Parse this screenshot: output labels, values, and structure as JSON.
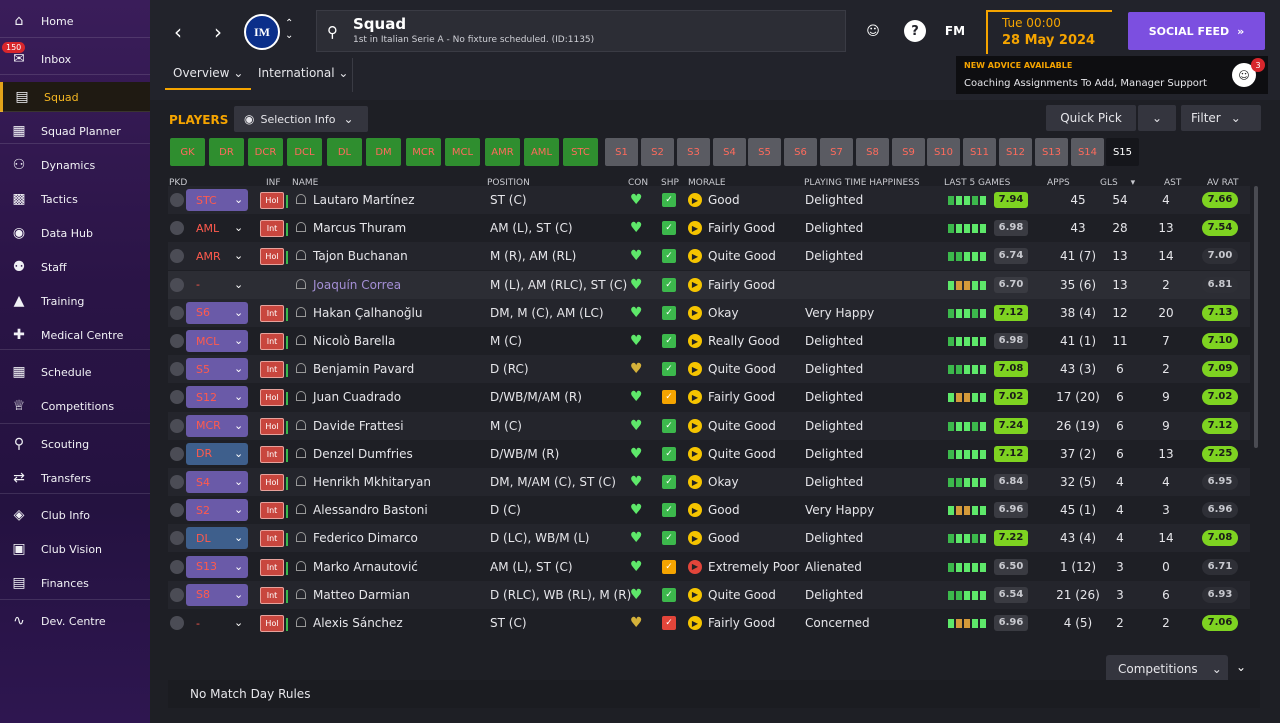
{
  "sidebar": {
    "inbox_badge": "150",
    "items": [
      {
        "label": "Home",
        "icon": "home-icon",
        "glyph": "⌂"
      },
      {
        "label": "Inbox",
        "icon": "inbox-icon",
        "glyph": "✉"
      },
      {
        "label": "Squad",
        "icon": "squad-icon",
        "glyph": "▤"
      },
      {
        "label": "Squad Planner",
        "icon": "planner-icon",
        "glyph": "▦"
      },
      {
        "label": "Dynamics",
        "icon": "dynamics-icon",
        "glyph": "⚇"
      },
      {
        "label": "Tactics",
        "icon": "tactics-icon",
        "glyph": "▩"
      },
      {
        "label": "Data Hub",
        "icon": "data-hub-icon",
        "glyph": "◉"
      },
      {
        "label": "Staff",
        "icon": "staff-icon",
        "glyph": "⚉"
      },
      {
        "label": "Training",
        "icon": "training-icon",
        "glyph": "▲"
      },
      {
        "label": "Medical Centre",
        "icon": "medical-icon",
        "glyph": "✚"
      },
      {
        "label": "Schedule",
        "icon": "schedule-icon",
        "glyph": "▦"
      },
      {
        "label": "Competitions",
        "icon": "trophy-icon",
        "glyph": "♕"
      },
      {
        "label": "Scouting",
        "icon": "scouting-icon",
        "glyph": "⚲"
      },
      {
        "label": "Transfers",
        "icon": "transfers-icon",
        "glyph": "⇄"
      },
      {
        "label": "Club Info",
        "icon": "club-info-icon",
        "glyph": "◈"
      },
      {
        "label": "Club Vision",
        "icon": "club-vision-icon",
        "glyph": "▣"
      },
      {
        "label": "Finances",
        "icon": "finances-icon",
        "glyph": "▤"
      },
      {
        "label": "Dev. Centre",
        "icon": "dev-centre-icon",
        "glyph": "∿"
      }
    ]
  },
  "header": {
    "club_badge": "IM",
    "title": "Squad",
    "subtitle": "1st in Italian Serie A - No fixture scheduled. (ID:1135)",
    "fm_label": "FM",
    "date_time": "Tue 00:00",
    "date_day": "28 May 2024",
    "social_feed": "SOCIAL FEED",
    "advice_title": "NEW ADVICE AVAILABLE",
    "advice_text": "Coaching Assignments To Add, Manager Support",
    "advice_count": "3",
    "tabs": [
      "Overview",
      "International"
    ]
  },
  "toolbar": {
    "players_label": "PLAYERS",
    "selection_info": "Selection Info",
    "quick_pick": "Quick Pick",
    "filter": "Filter"
  },
  "position_filters": [
    "GK",
    "DR",
    "DCR",
    "DCL",
    "DL",
    "DM",
    "MCR",
    "MCL",
    "AMR",
    "AML",
    "STC",
    "S1",
    "S2",
    "S3",
    "S4",
    "S5",
    "S6",
    "S7",
    "S8",
    "S9",
    "S10",
    "S11",
    "S12",
    "S13",
    "S14",
    "S15"
  ],
  "columns": {
    "pkd": "PKD",
    "inf": "INF",
    "name": "NAME",
    "position": "POSITION",
    "con": "CON",
    "shp": "SHP",
    "morale": "MORALE",
    "pth": "PLAYING TIME HAPPINESS",
    "last5": "LAST 5 GAMES",
    "apps": "APPS",
    "gls": "GLS",
    "ast": "AST",
    "avrat": "AV RAT"
  },
  "players": [
    {
      "pkd": "STC",
      "inf": "Hol",
      "name": "Lautaro Martínez",
      "position": "ST (C)",
      "morale": "Good",
      "pth": "Delighted",
      "l5": "7.94",
      "apps": "45",
      "gls": "54",
      "ast": "4",
      "avr": "7.66"
    },
    {
      "pkd": "AML",
      "inf": "Int",
      "name": "Marcus Thuram",
      "position": "AM (L), ST (C)",
      "morale": "Fairly Good",
      "pth": "Delighted",
      "l5": "6.98",
      "apps": "43",
      "gls": "28",
      "ast": "13",
      "avr": "7.54"
    },
    {
      "pkd": "AMR",
      "inf": "Hol",
      "name": "Tajon Buchanan",
      "position": "M (R), AM (RL)",
      "morale": "Quite Good",
      "pth": "Delighted",
      "l5": "6.74",
      "apps": "41 (7)",
      "gls": "13",
      "ast": "14",
      "avr": "7.00"
    },
    {
      "pkd": "-",
      "inf": "",
      "name": "Joaquín Correa",
      "position": "M (L), AM (RLC), ST (C)",
      "morale": "Fairly Good",
      "pth": "",
      "l5": "6.70",
      "apps": "35 (6)",
      "gls": "13",
      "ast": "2",
      "avr": "6.81"
    },
    {
      "pkd": "S6",
      "inf": "Int",
      "name": "Hakan Çalhanoğlu",
      "position": "DM, M (C), AM (LC)",
      "morale": "Okay",
      "pth": "Very Happy",
      "l5": "7.12",
      "apps": "38 (4)",
      "gls": "12",
      "ast": "20",
      "avr": "7.13"
    },
    {
      "pkd": "MCL",
      "inf": "Int",
      "name": "Nicolò Barella",
      "position": "M (C)",
      "morale": "Really Good",
      "pth": "Delighted",
      "l5": "6.98",
      "apps": "41 (1)",
      "gls": "11",
      "ast": "7",
      "avr": "7.10"
    },
    {
      "pkd": "S5",
      "inf": "Int",
      "name": "Benjamin Pavard",
      "position": "D (RC)",
      "morale": "Quite Good",
      "pth": "Delighted",
      "l5": "7.08",
      "apps": "43 (3)",
      "gls": "6",
      "ast": "2",
      "avr": "7.09"
    },
    {
      "pkd": "S12",
      "inf": "Hol",
      "name": "Juan Cuadrado",
      "position": "D/WB/M/AM (R)",
      "morale": "Fairly Good",
      "pth": "Delighted",
      "l5": "7.02",
      "apps": "17 (20)",
      "gls": "6",
      "ast": "9",
      "avr": "7.02"
    },
    {
      "pkd": "MCR",
      "inf": "Hol",
      "name": "Davide Frattesi",
      "position": "M (C)",
      "morale": "Quite Good",
      "pth": "Delighted",
      "l5": "7.24",
      "apps": "26 (19)",
      "gls": "6",
      "ast": "9",
      "avr": "7.12"
    },
    {
      "pkd": "DR",
      "inf": "Int",
      "name": "Denzel Dumfries",
      "position": "D/WB/M (R)",
      "morale": "Quite Good",
      "pth": "Delighted",
      "l5": "7.12",
      "apps": "37 (2)",
      "gls": "6",
      "ast": "13",
      "avr": "7.25"
    },
    {
      "pkd": "S4",
      "inf": "Hol",
      "name": "Henrikh Mkhitaryan",
      "position": "DM, M/AM (C), ST (C)",
      "morale": "Okay",
      "pth": "Delighted",
      "l5": "6.84",
      "apps": "32 (5)",
      "gls": "4",
      "ast": "4",
      "avr": "6.95"
    },
    {
      "pkd": "S2",
      "inf": "Int",
      "name": "Alessandro Bastoni",
      "position": "D (C)",
      "morale": "Good",
      "pth": "Very Happy",
      "l5": "6.96",
      "apps": "45 (1)",
      "gls": "4",
      "ast": "3",
      "avr": "6.96"
    },
    {
      "pkd": "DL",
      "inf": "Int",
      "name": "Federico Dimarco",
      "position": "D (LC), WB/M (L)",
      "morale": "Good",
      "pth": "Delighted",
      "l5": "7.22",
      "apps": "43 (4)",
      "gls": "4",
      "ast": "14",
      "avr": "7.08"
    },
    {
      "pkd": "S13",
      "inf": "Int",
      "name": "Marko Arnautović",
      "position": "AM (L), ST (C)",
      "morale": "Extremely Poor",
      "pth": "Alienated",
      "l5": "6.50",
      "apps": "1 (12)",
      "gls": "3",
      "ast": "0",
      "avr": "6.71"
    },
    {
      "pkd": "S8",
      "inf": "Int",
      "name": "Matteo Darmian",
      "position": "D (RLC), WB (RL), M (R)",
      "morale": "Quite Good",
      "pth": "Delighted",
      "l5": "6.54",
      "apps": "21 (26)",
      "gls": "3",
      "ast": "6",
      "avr": "6.93"
    },
    {
      "pkd": "-",
      "inf": "Hol",
      "name": "Alexis Sánchez",
      "position": "ST (C)",
      "morale": "Fairly Good",
      "pth": "Concerned",
      "l5": "6.96",
      "apps": "4 (5)",
      "gls": "2",
      "ast": "2",
      "avr": "7.06"
    }
  ],
  "footer": {
    "competitions": "Competitions",
    "rules": "No Match Day Rules"
  },
  "colors": {
    "accent": "#f5a400",
    "social_feed": "#7c4fe0",
    "good_green": "#7ed321",
    "chip_green": "#2f8e2f"
  }
}
